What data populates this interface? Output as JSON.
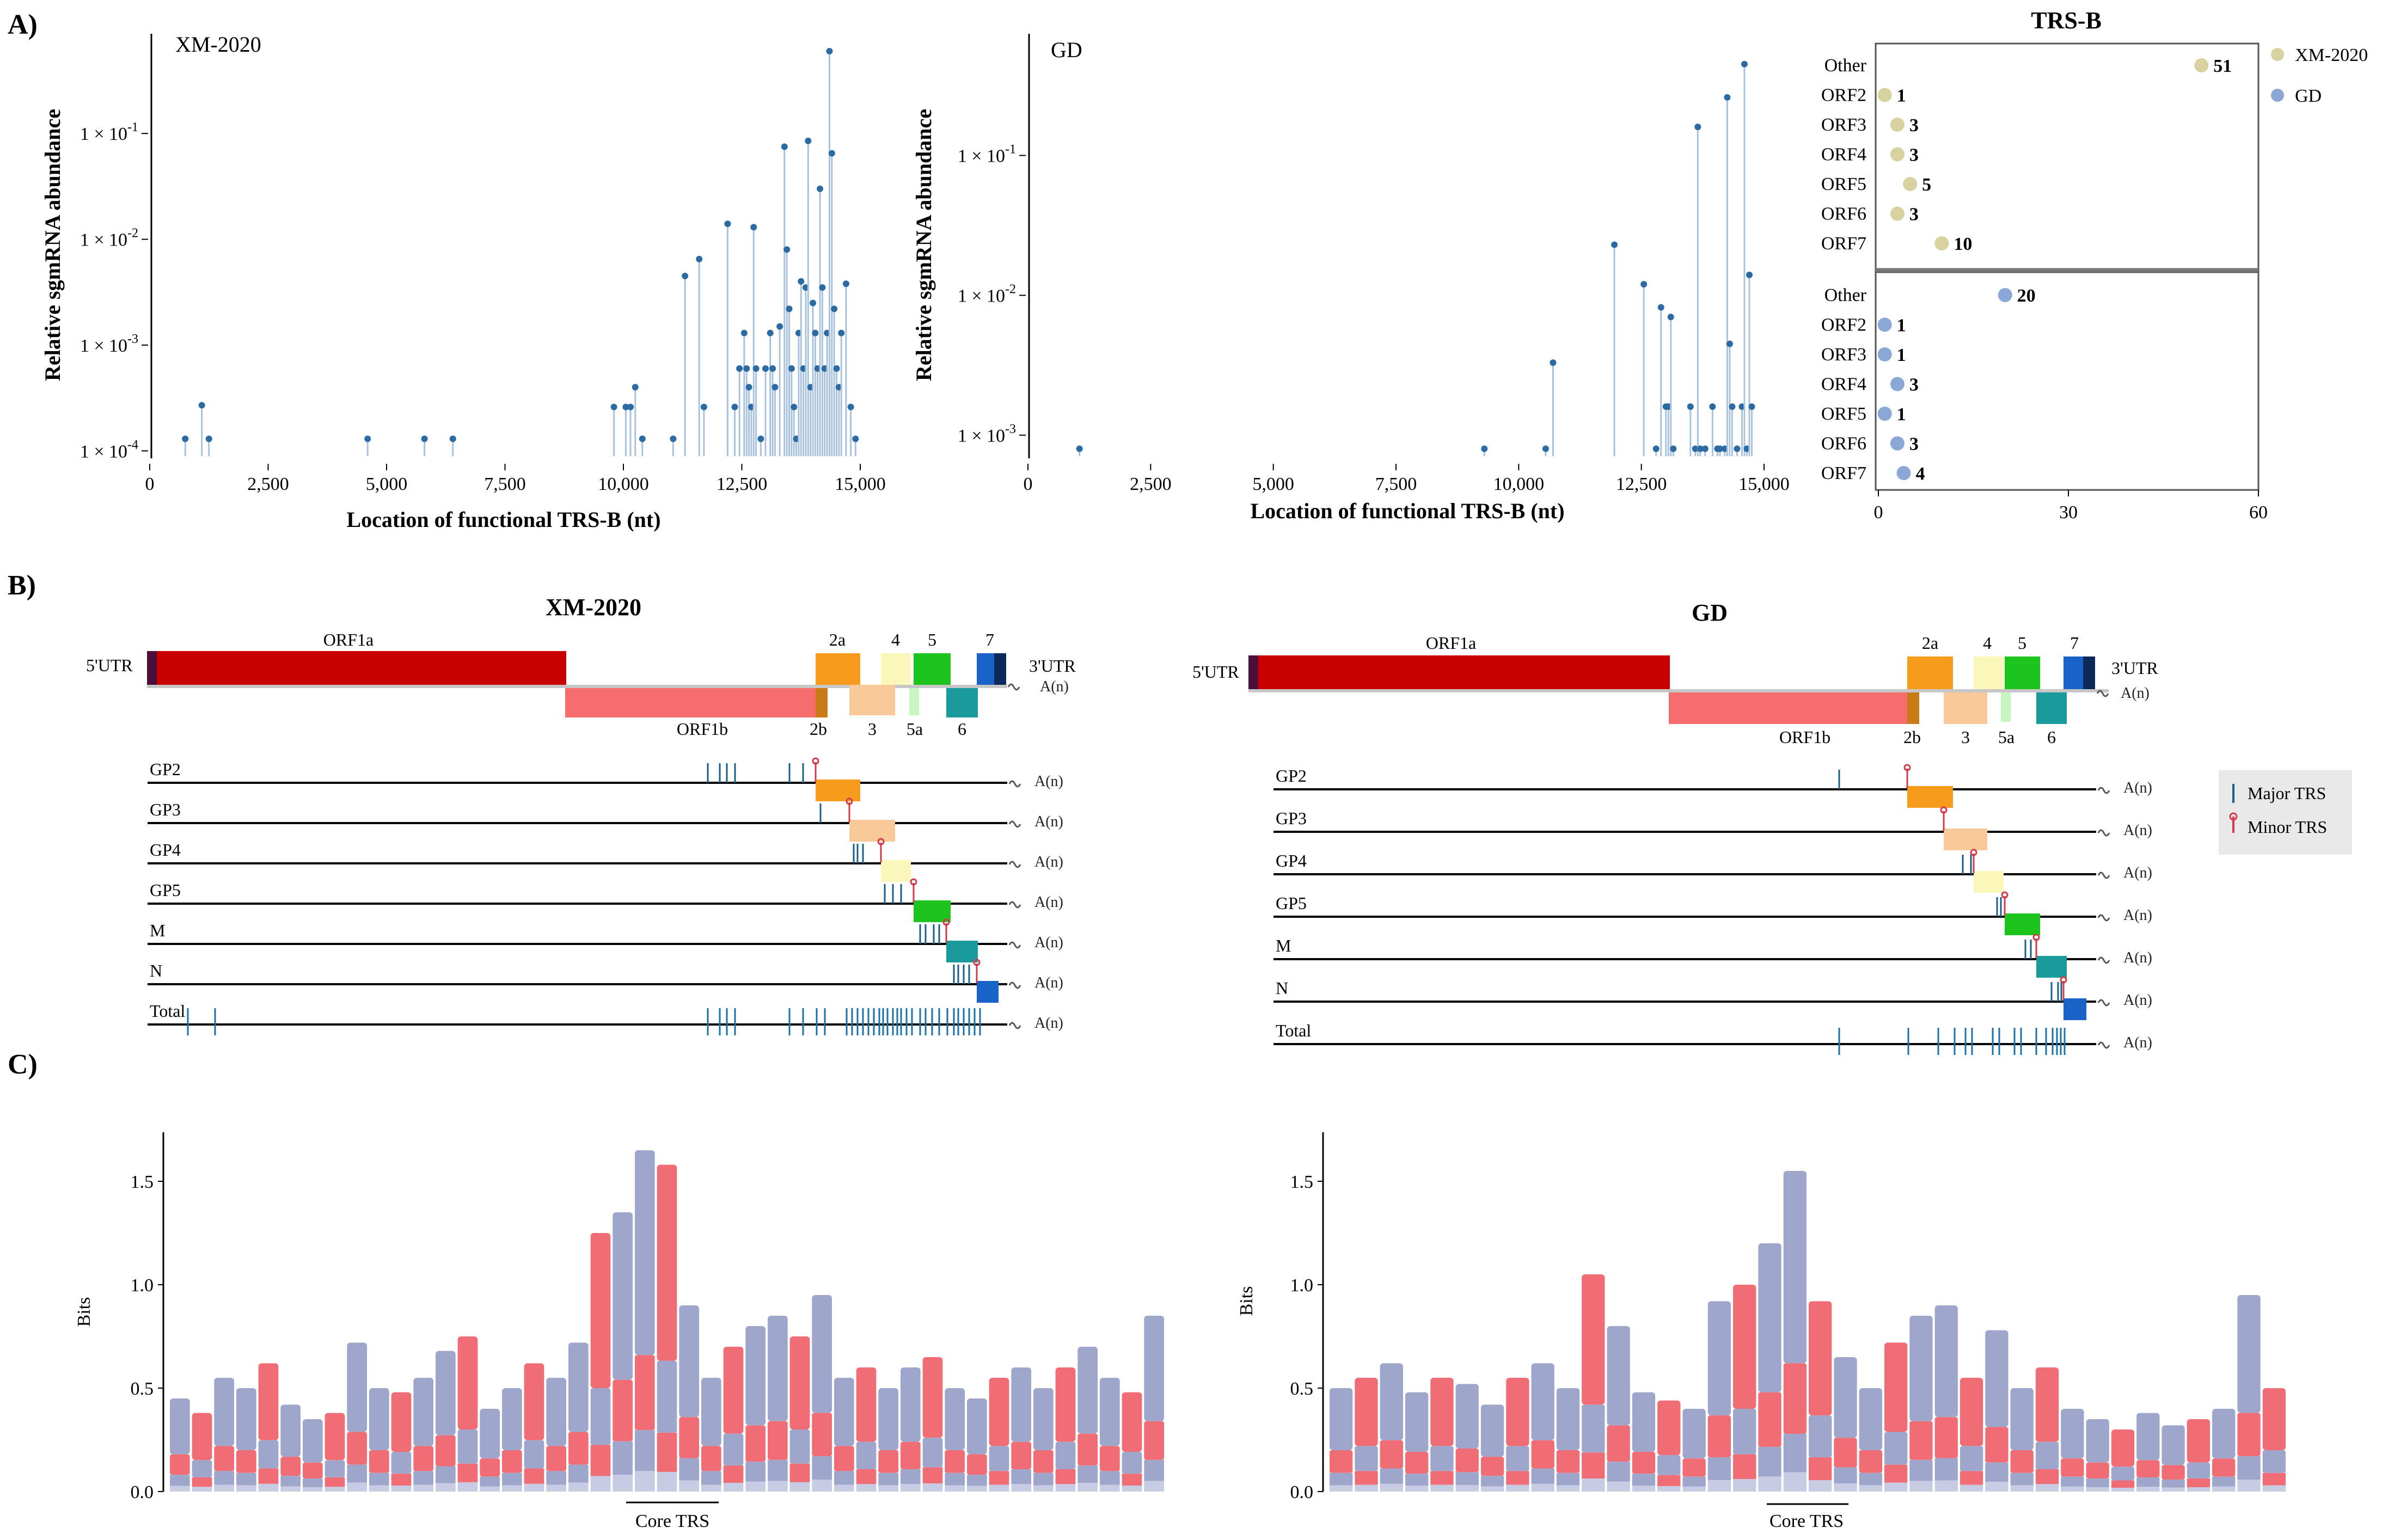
{
  "panel_labels": {
    "a": "A)",
    "b": "B)",
    "c": "C)"
  },
  "chart_data": [
    {
      "type": "scatter",
      "subtype": "lollipop",
      "title": "XM-2020",
      "xlabel": "Location of functional TRS-B (nt)",
      "ylabel": "Relative sgmRNA abundance",
      "xlim": [
        0,
        15000
      ],
      "xticks": [
        "0",
        "2,500",
        "5,000",
        "7,500",
        "10,000",
        "12,500",
        "15,000"
      ],
      "ylim_log10": [
        -4.05,
        -0.15
      ],
      "ytick_labels": [
        {
          "base": "1 × 10",
          "exp": "-4",
          "log": -4
        },
        {
          "base": "1 × 10",
          "exp": "-3",
          "log": -3
        },
        {
          "base": "1 × 10",
          "exp": "-2",
          "log": -2
        },
        {
          "base": "1 × 10",
          "exp": "-1",
          "log": -1
        }
      ],
      "points": [
        [
          750,
          0.00013
        ],
        [
          1100,
          0.00027
        ],
        [
          1250,
          0.00013
        ],
        [
          4600,
          0.00013
        ],
        [
          5800,
          0.00013
        ],
        [
          6400,
          0.00013
        ],
        [
          9800,
          0.00026
        ],
        [
          10050,
          0.00026
        ],
        [
          10150,
          0.00026
        ],
        [
          10250,
          0.0004
        ],
        [
          10400,
          0.00013
        ],
        [
          11050,
          0.00013
        ],
        [
          11300,
          0.0045
        ],
        [
          11600,
          0.0065
        ],
        [
          11700,
          0.00026
        ],
        [
          12200,
          0.014
        ],
        [
          12350,
          0.00026
        ],
        [
          12450,
          0.0006
        ],
        [
          12550,
          0.0013
        ],
        [
          12600,
          0.0006
        ],
        [
          12650,
          0.0004
        ],
        [
          12700,
          0.00026
        ],
        [
          12750,
          0.013
        ],
        [
          12800,
          0.0006
        ],
        [
          12900,
          0.00013
        ],
        [
          13000,
          0.0006
        ],
        [
          13100,
          0.0013
        ],
        [
          13150,
          0.0006
        ],
        [
          13200,
          0.0004
        ],
        [
          13300,
          0.0015
        ],
        [
          13400,
          0.075
        ],
        [
          13450,
          0.008
        ],
        [
          13500,
          0.0022
        ],
        [
          13550,
          0.0006
        ],
        [
          13600,
          0.00026
        ],
        [
          13650,
          0.00013
        ],
        [
          13700,
          0.0013
        ],
        [
          13750,
          0.004
        ],
        [
          13800,
          0.0006
        ],
        [
          13850,
          0.0035
        ],
        [
          13900,
          0.085
        ],
        [
          13950,
          0.0004
        ],
        [
          14000,
          0.0025
        ],
        [
          14050,
          0.0013
        ],
        [
          14100,
          0.0006
        ],
        [
          14150,
          0.03
        ],
        [
          14200,
          0.0035
        ],
        [
          14250,
          0.0006
        ],
        [
          14300,
          0.0013
        ],
        [
          14350,
          0.6
        ],
        [
          14400,
          0.065
        ],
        [
          14450,
          0.0022
        ],
        [
          14500,
          0.0006
        ],
        [
          14550,
          0.0004
        ],
        [
          14600,
          0.0013
        ],
        [
          14700,
          0.0038
        ],
        [
          14800,
          0.00026
        ],
        [
          14900,
          0.00013
        ]
      ]
    },
    {
      "type": "scatter",
      "subtype": "lollipop",
      "title": "GD",
      "xlabel": "Location of functional TRS-B (nt)",
      "ylabel": "Relative sgmRNA abundance",
      "xlim": [
        0,
        15000
      ],
      "xticks": [
        "0",
        "2,500",
        "5,000",
        "7,500",
        "10,000",
        "12,500",
        "15,000"
      ],
      "ylim_log10": [
        -3.15,
        -0.2
      ],
      "ytick_labels": [
        {
          "base": "1 × 10",
          "exp": "-3",
          "log": -3
        },
        {
          "base": "1 × 10",
          "exp": "-2",
          "log": -2
        },
        {
          "base": "1 × 10",
          "exp": "-1",
          "log": -1
        }
      ],
      "points": [
        [
          1050,
          0.0008
        ],
        [
          9300,
          0.0008
        ],
        [
          10550,
          0.0008
        ],
        [
          10700,
          0.0033
        ],
        [
          11950,
          0.023
        ],
        [
          12550,
          0.012
        ],
        [
          12800,
          0.0008
        ],
        [
          12900,
          0.0082
        ],
        [
          13000,
          0.0016
        ],
        [
          13050,
          0.0016
        ],
        [
          13100,
          0.007
        ],
        [
          13150,
          0.0008
        ],
        [
          13500,
          0.0016
        ],
        [
          13600,
          0.0008
        ],
        [
          13650,
          0.16
        ],
        [
          13700,
          0.0008
        ],
        [
          13800,
          0.0008
        ],
        [
          13950,
          0.0016
        ],
        [
          14050,
          0.0008
        ],
        [
          14100,
          0.0008
        ],
        [
          14200,
          0.0008
        ],
        [
          14250,
          0.26
        ],
        [
          14300,
          0.0045
        ],
        [
          14350,
          0.0016
        ],
        [
          14450,
          0.0008
        ],
        [
          14550,
          0.0016
        ],
        [
          14600,
          0.45
        ],
        [
          14650,
          0.0008
        ],
        [
          14700,
          0.014
        ],
        [
          14750,
          0.0016
        ]
      ]
    },
    {
      "type": "scatter",
      "subtype": "dot-plot",
      "title": "TRS-B",
      "xlim": [
        0,
        60
      ],
      "xticks": [
        "0",
        "30",
        "60"
      ],
      "legend": [
        {
          "name": "XM-2020",
          "color": "#d8d2a0"
        },
        {
          "name": "GD",
          "color": "#8aa7d6"
        }
      ],
      "series": [
        {
          "name": "XM-2020",
          "categories": [
            "Other",
            "ORF2",
            "ORF3",
            "ORF4",
            "ORF5",
            "ORF6",
            "ORF7"
          ],
          "values": [
            51,
            1,
            3,
            3,
            5,
            3,
            10
          ]
        },
        {
          "name": "GD",
          "categories": [
            "Other",
            "ORF2",
            "ORF3",
            "ORF4",
            "ORF5",
            "ORF6",
            "ORF7"
          ],
          "values": [
            20,
            1,
            1,
            3,
            1,
            3,
            4
          ]
        }
      ],
      "value_labels_xm": [
        "51",
        "1",
        "3",
        "3",
        "5",
        "3",
        "10"
      ],
      "value_labels_gd": [
        "20",
        "1",
        "1",
        "3",
        "1",
        "3",
        "4"
      ]
    }
  ],
  "genome_maps": [
    {
      "title": "XM-2020",
      "utr5": "5'UTR",
      "utr3": "3'UTR",
      "orf1a": "ORF1a",
      "orf1b": "ORF1b",
      "gene_labels": [
        "2a",
        "4",
        "5",
        "7",
        "2b",
        "3",
        "5a",
        "6"
      ],
      "polya": "A(n)",
      "track_labels": [
        "GP2",
        "GP3",
        "GP4",
        "GP5",
        "M",
        "N",
        "Total"
      ]
    },
    {
      "title": "GD",
      "utr5": "5'UTR",
      "utr3": "3'UTR",
      "orf1a": "ORF1a",
      "orf1b": "ORF1b",
      "gene_labels": [
        "2a",
        "4",
        "5",
        "7",
        "2b",
        "3",
        "5a",
        "6"
      ],
      "polya": "A(n)",
      "track_labels": [
        "GP2",
        "GP3",
        "GP4",
        "GP5",
        "M",
        "N",
        "Total"
      ]
    }
  ],
  "trs_legend": {
    "major": "Major TRS",
    "minor": "Minor TRS"
  },
  "logos": [
    {
      "ylabel": "Bits",
      "yticks": [
        "0.0",
        "0.5",
        "1.0",
        "1.5"
      ],
      "xlabel": "Core TRS",
      "ymax": 1.7,
      "heights": [
        0.45,
        0.38,
        0.55,
        0.5,
        0.62,
        0.42,
        0.35,
        0.38,
        0.72,
        0.5,
        0.48,
        0.55,
        0.68,
        0.75,
        0.4,
        0.5,
        0.62,
        0.55,
        0.72,
        1.25,
        1.35,
        1.65,
        1.58,
        0.9,
        0.55,
        0.7,
        0.8,
        0.85,
        0.75,
        0.95,
        0.55,
        0.6,
        0.5,
        0.6,
        0.65,
        0.5,
        0.45,
        0.55,
        0.6,
        0.5,
        0.6,
        0.7,
        0.55,
        0.48,
        0.85
      ]
    },
    {
      "ylabel": "Bits",
      "yticks": [
        "0.0",
        "0.5",
        "1.0",
        "1.5"
      ],
      "xlabel": "Core TRS",
      "ymax": 1.75,
      "heights": [
        0.5,
        0.55,
        0.62,
        0.48,
        0.55,
        0.52,
        0.42,
        0.55,
        0.62,
        0.5,
        1.05,
        0.8,
        0.48,
        0.44,
        0.4,
        0.92,
        1.0,
        1.2,
        1.55,
        0.92,
        0.65,
        0.5,
        0.72,
        0.85,
        0.9,
        0.55,
        0.78,
        0.5,
        0.6,
        0.4,
        0.35,
        0.3,
        0.38,
        0.32,
        0.35,
        0.4,
        0.95,
        0.5
      ]
    }
  ]
}
